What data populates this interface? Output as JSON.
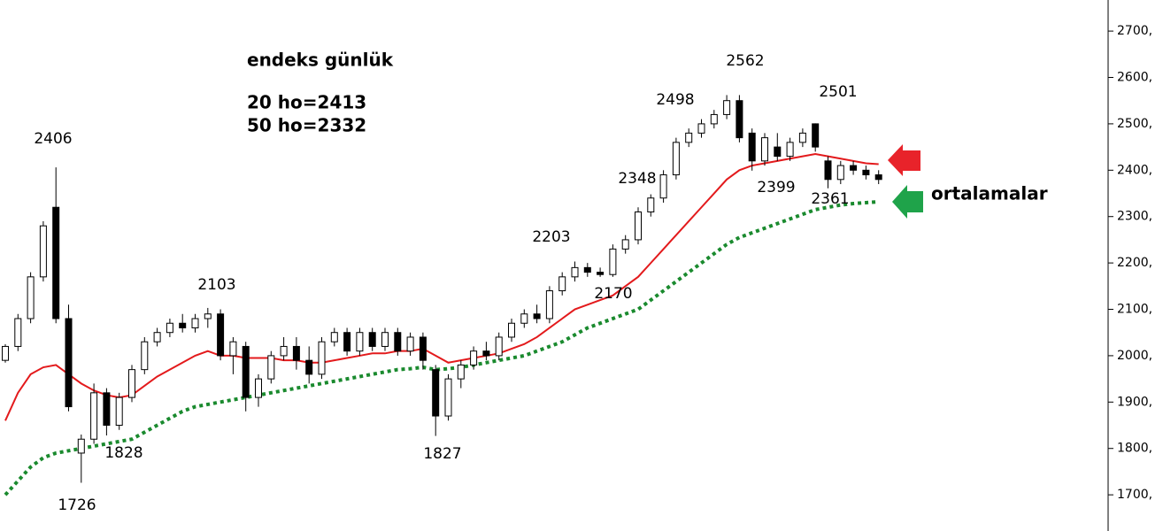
{
  "chart_data": {
    "type": "candlestick",
    "title": "endeks günlük",
    "subtitle_lines": [
      "20 ho=2413",
      "50 ho=2332"
    ],
    "side_label": "ortalamalar",
    "annotations": [
      "2406",
      "2103",
      "1828",
      "1726",
      "1827",
      "2203",
      "2170",
      "2348",
      "2498",
      "2562",
      "2501",
      "2399",
      "2361"
    ],
    "open": [
      1990,
      2020,
      2080,
      2170,
      2320,
      2080,
      1790,
      1820,
      1920,
      1850,
      1910,
      1970,
      2030,
      2050,
      2070,
      2060,
      2080,
      2090,
      2000,
      2020,
      1910,
      1950,
      2000,
      2020,
      1990,
      1960,
      2030,
      2050,
      2010,
      2050,
      2020,
      2050,
      2010,
      2040,
      1970,
      1870,
      1950,
      1980,
      2010,
      2000,
      2040,
      2070,
      2090,
      2080,
      2140,
      2170,
      2190,
      2180,
      2175,
      2230,
      2250,
      2310,
      2340,
      2390,
      2460,
      2480,
      2500,
      2520,
      2550,
      2480,
      2420,
      2450,
      2430,
      2460,
      2500,
      2420,
      2380,
      2410,
      2400,
      2390
    ],
    "high": [
      2025,
      2090,
      2180,
      2290,
      2406,
      2110,
      1830,
      1940,
      1930,
      1920,
      1980,
      2040,
      2060,
      2080,
      2090,
      2090,
      2103,
      2100,
      2040,
      2030,
      1960,
      2010,
      2040,
      2040,
      2020,
      2040,
      2060,
      2060,
      2060,
      2060,
      2060,
      2060,
      2050,
      2050,
      1980,
      1960,
      1990,
      2020,
      2030,
      2050,
      2080,
      2100,
      2110,
      2150,
      2180,
      2203,
      2200,
      2190,
      2240,
      2260,
      2320,
      2348,
      2400,
      2470,
      2490,
      2510,
      2530,
      2562,
      2562,
      2490,
      2480,
      2480,
      2470,
      2490,
      2501,
      2430,
      2420,
      2420,
      2410,
      2400
    ],
    "low": [
      1985,
      2010,
      2070,
      2160,
      2070,
      1880,
      1726,
      1810,
      1828,
      1840,
      1900,
      1960,
      2020,
      2040,
      2050,
      2050,
      2060,
      1990,
      1960,
      1880,
      1890,
      1940,
      1990,
      1970,
      1940,
      1950,
      2020,
      2000,
      2000,
      2010,
      2010,
      2000,
      2000,
      1970,
      1827,
      1860,
      1930,
      1970,
      1990,
      1990,
      2030,
      2060,
      2070,
      2070,
      2130,
      2160,
      2170,
      2170,
      2170,
      2220,
      2240,
      2300,
      2330,
      2380,
      2450,
      2470,
      2490,
      2510,
      2460,
      2399,
      2410,
      2420,
      2420,
      2450,
      2440,
      2361,
      2370,
      2390,
      2380,
      2370
    ],
    "close": [
      2020,
      2080,
      2170,
      2280,
      2080,
      1890,
      1820,
      1920,
      1850,
      1910,
      1970,
      2030,
      2050,
      2070,
      2060,
      2080,
      2090,
      2000,
      2030,
      1910,
      1950,
      2000,
      2020,
      1990,
      1960,
      2030,
      2050,
      2010,
      2050,
      2020,
      2050,
      2010,
      2040,
      1990,
      1870,
      1950,
      1980,
      2010,
      2000,
      2040,
      2070,
      2090,
      2080,
      2140,
      2170,
      2190,
      2180,
      2175,
      2230,
      2250,
      2310,
      2340,
      2390,
      2460,
      2480,
      2500,
      2520,
      2550,
      2470,
      2420,
      2470,
      2430,
      2460,
      2480,
      2450,
      2380,
      2410,
      2400,
      2390,
      2380
    ],
    "up_color": "#ffffff",
    "down_color": "#000000",
    "ma_lines": [
      {
        "color": "#e31a1c",
        "style": "solid",
        "values": [
          1860,
          1920,
          1960,
          1975,
          1980,
          1960,
          1940,
          1925,
          1915,
          1910,
          1915,
          1935,
          1955,
          1970,
          1985,
          2000,
          2010,
          2000,
          2000,
          1995,
          1995,
          1995,
          1990,
          1990,
          1985,
          1985,
          1990,
          1995,
          2000,
          2005,
          2005,
          2010,
          2010,
          2015,
          2000,
          1985,
          1990,
          1995,
          2000,
          2005,
          2015,
          2025,
          2040,
          2060,
          2080,
          2100,
          2110,
          2120,
          2130,
          2150,
          2170,
          2200,
          2230,
          2260,
          2290,
          2320,
          2350,
          2380,
          2400,
          2410,
          2415,
          2420,
          2425,
          2430,
          2435,
          2430,
          2425,
          2420,
          2415,
          2413
        ]
      },
      {
        "color": "#1a8a2e",
        "style": "dotted",
        "values": [
          1700,
          1730,
          1760,
          1780,
          1790,
          1795,
          1800,
          1805,
          1810,
          1815,
          1820,
          1835,
          1850,
          1865,
          1880,
          1890,
          1895,
          1900,
          1905,
          1910,
          1915,
          1920,
          1925,
          1930,
          1935,
          1940,
          1945,
          1950,
          1955,
          1960,
          1965,
          1970,
          1972,
          1975,
          1970,
          1972,
          1975,
          1980,
          1985,
          1990,
          1995,
          2000,
          2010,
          2020,
          2030,
          2045,
          2060,
          2070,
          2080,
          2090,
          2100,
          2120,
          2140,
          2160,
          2180,
          2200,
          2220,
          2240,
          2255,
          2265,
          2275,
          2285,
          2295,
          2305,
          2315,
          2320,
          2325,
          2328,
          2330,
          2332
        ]
      }
    ],
    "ylim": [
      1622,
      2767
    ],
    "yticks": [
      {
        "value": 1700,
        "label": "1700,"
      },
      {
        "value": 1800,
        "label": "1800,"
      },
      {
        "value": 1900,
        "label": "1900,"
      },
      {
        "value": 2000,
        "label": "2000,"
      },
      {
        "value": 2100,
        "label": "2100,"
      },
      {
        "value": 2200,
        "label": "2200,"
      },
      {
        "value": 2300,
        "label": "2300,"
      },
      {
        "value": 2400,
        "label": "2400,"
      },
      {
        "value": 2500,
        "label": "2500,"
      },
      {
        "value": 2600,
        "label": "2600,"
      },
      {
        "value": 2700,
        "label": "2700,"
      }
    ]
  }
}
